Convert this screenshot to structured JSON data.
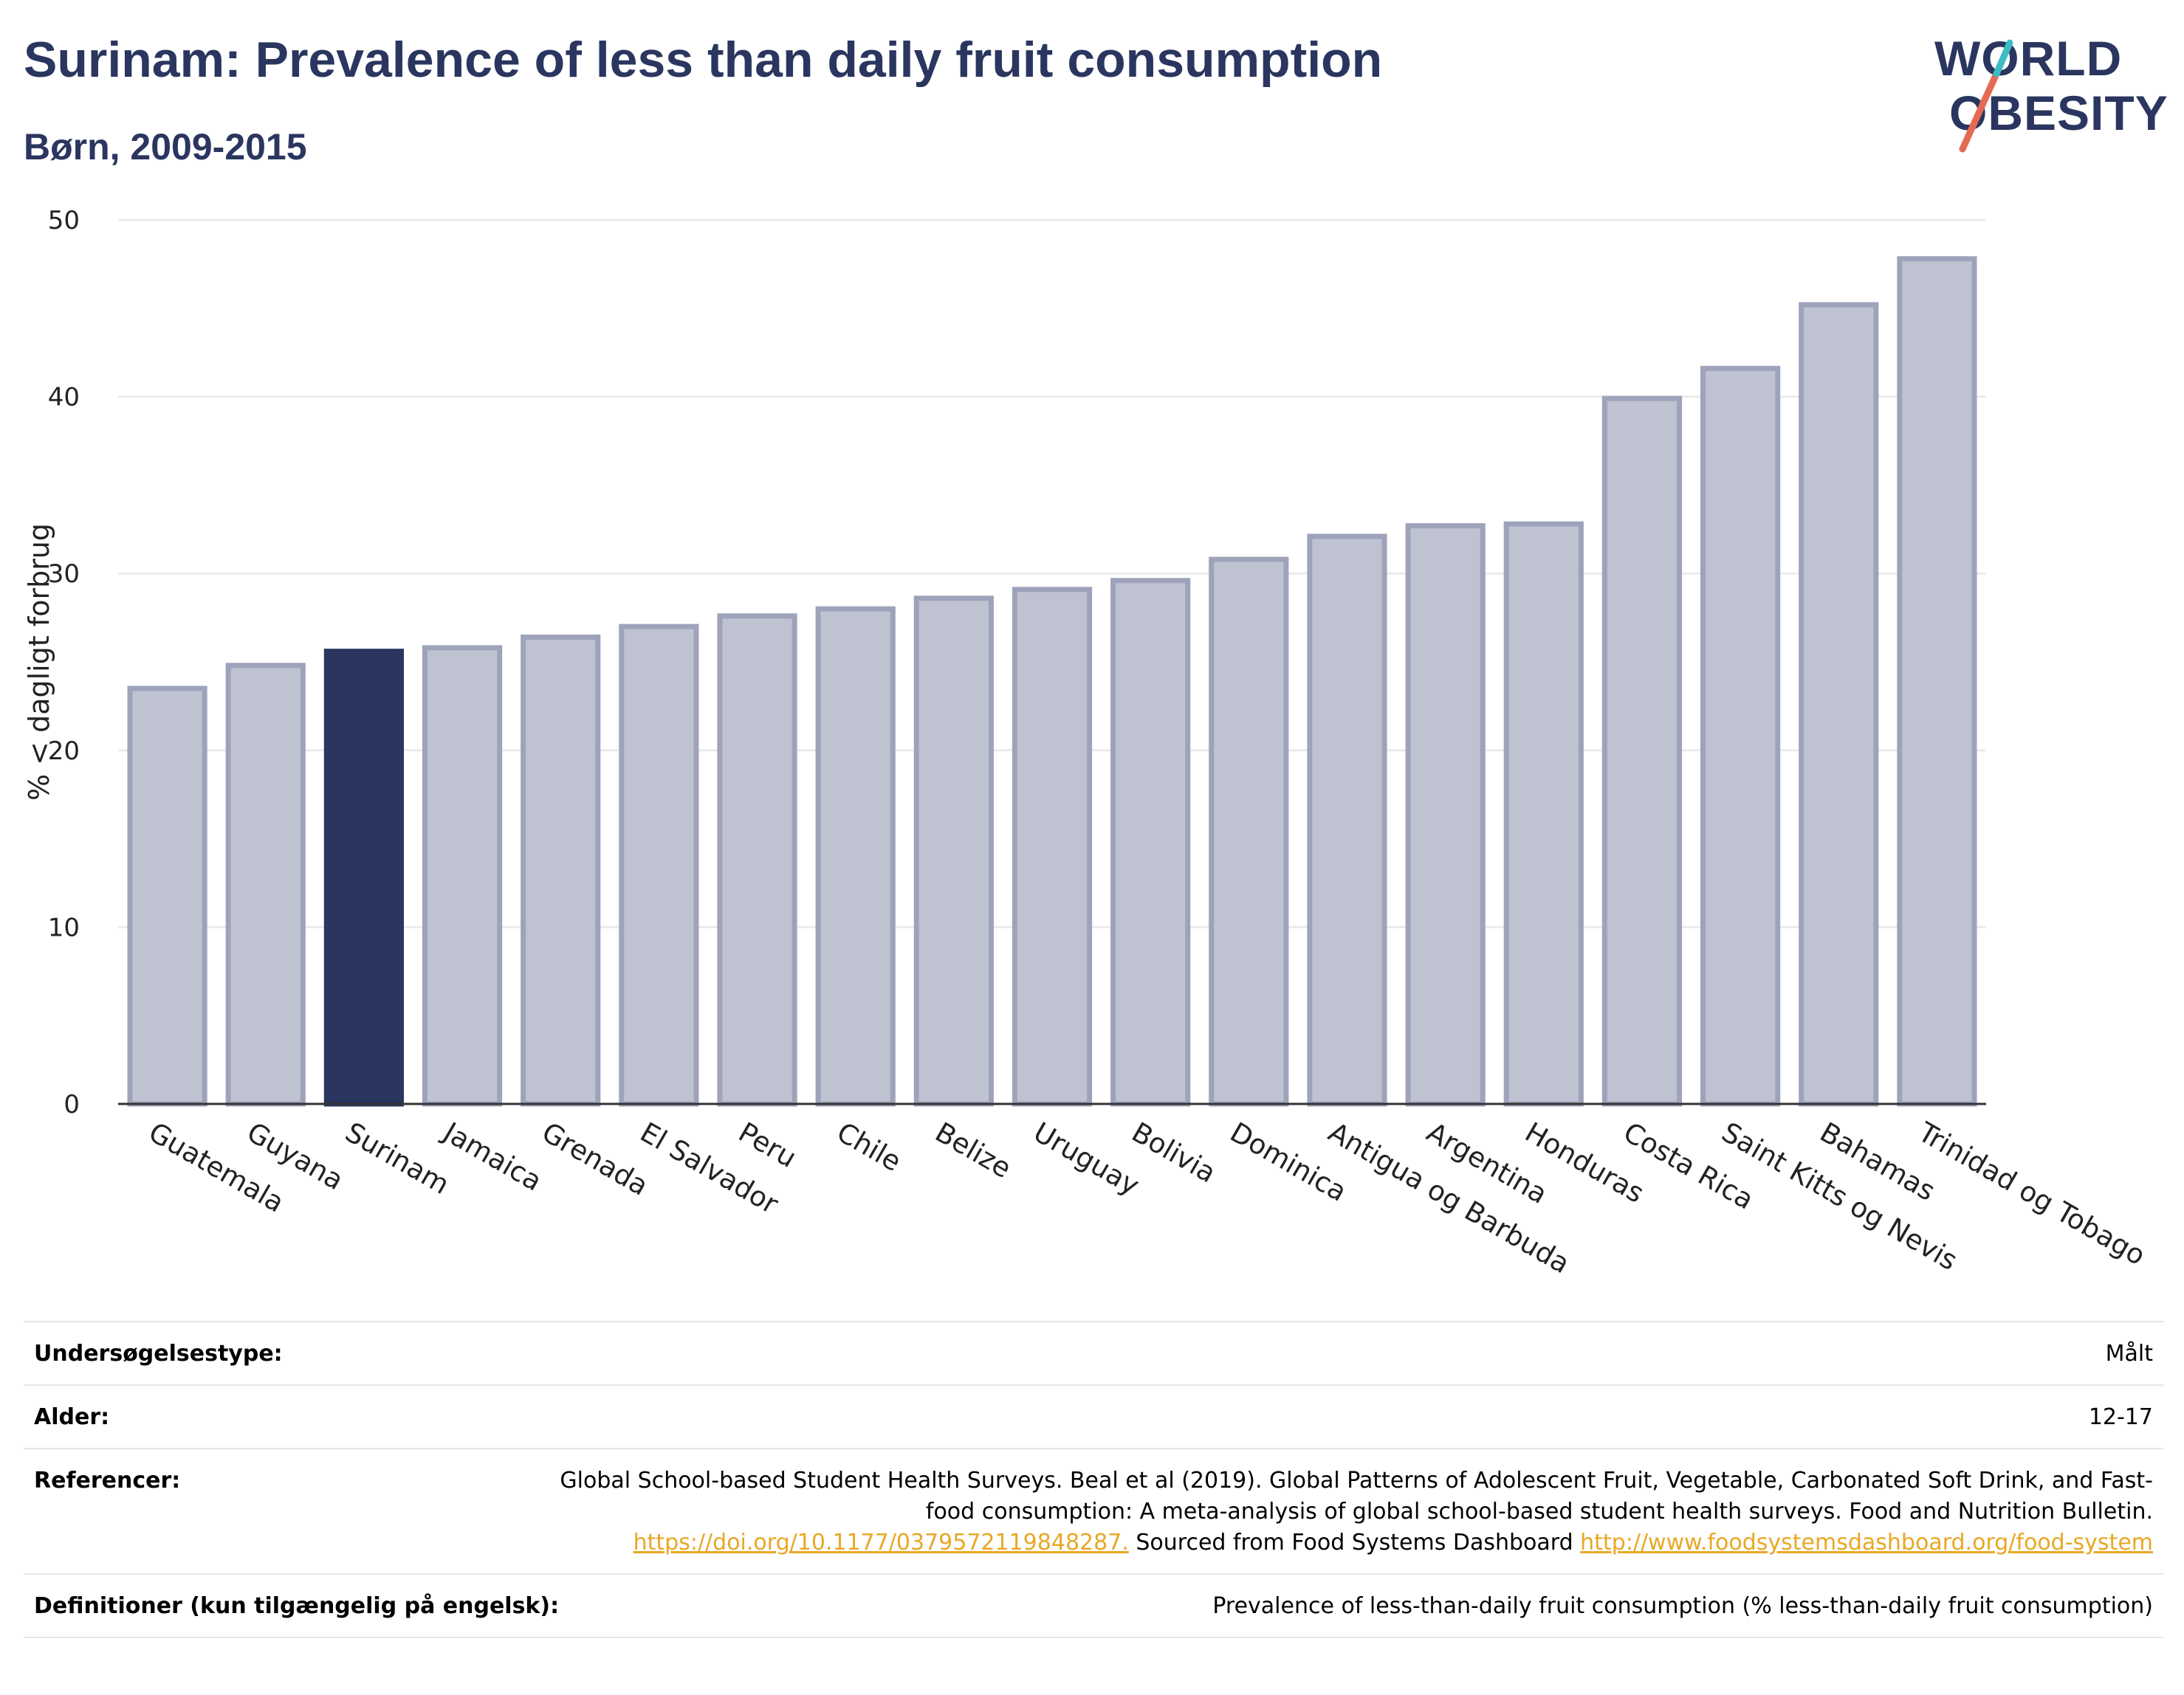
{
  "header": {
    "title": "Surinam: Prevalence of less than daily fruit consumption",
    "subtitle": "Børn, 2009-2015"
  },
  "logo": {
    "line1": "WORLD",
    "line2": "OBESITY",
    "colors": {
      "text": "#2a365f",
      "slash_red": "#e56a54",
      "slash_teal": "#3dbcc4"
    }
  },
  "colors": {
    "highlight_bar": "#2a365f",
    "other_bar_fill": "#bfc3d1",
    "other_bar_stroke": "#9ea3bb",
    "gridline": "#ebebeb",
    "axis": "#333333",
    "link": "#e8a825"
  },
  "chart_data": {
    "type": "bar",
    "title": "Surinam: Prevalence of less than daily fruit consumption",
    "subtitle": "Børn, 2009-2015",
    "xlabel": "",
    "ylabel": "% < dagligt forbrug",
    "ylim": [
      0,
      50
    ],
    "yticks": [
      0,
      10,
      20,
      30,
      40,
      50
    ],
    "grid": true,
    "highlight": "Surinam",
    "categories": [
      "Guatemala",
      "Guyana",
      "Surinam",
      "Jamaica",
      "Grenada",
      "El Salvador",
      "Peru",
      "Chile",
      "Belize",
      "Uruguay",
      "Bolivia",
      "Dominica",
      "Antigua og Barbuda",
      "Argentina",
      "Honduras",
      "Costa Rica",
      "Saint Kitts og Nevis",
      "Bahamas",
      "Trinidad og Tobago"
    ],
    "values": [
      23.5,
      24.8,
      25.6,
      25.8,
      26.4,
      27.0,
      27.6,
      28.0,
      28.6,
      29.1,
      29.6,
      30.8,
      32.1,
      32.7,
      32.8,
      39.9,
      41.6,
      45.2,
      47.8
    ]
  },
  "info": {
    "rows": [
      {
        "label": "Undersøgelsestype:",
        "value": "Målt"
      },
      {
        "label": "Alder:",
        "value": "12-17"
      },
      {
        "label": "Referencer:",
        "value_text1": "Global School-based Student Health Surveys. Beal et al (2019). Global Patterns of Adolescent Fruit, Vegetable, Carbonated Soft Drink, and Fast-food consumption: A meta-analysis of global school-based student health surveys. Food and Nutrition Bulletin.",
        "link1": "https://doi.org/10.1177/0379572119848287.",
        "value_text2": " Sourced from Food Systems Dashboard ",
        "link2": "http://www.foodsystemsdashboard.org/food-system"
      },
      {
        "label": "Definitioner (kun tilgængelig på engelsk):",
        "value": "Prevalence of less-than-daily fruit consumption (% less-than-daily fruit consumption)"
      }
    ]
  }
}
